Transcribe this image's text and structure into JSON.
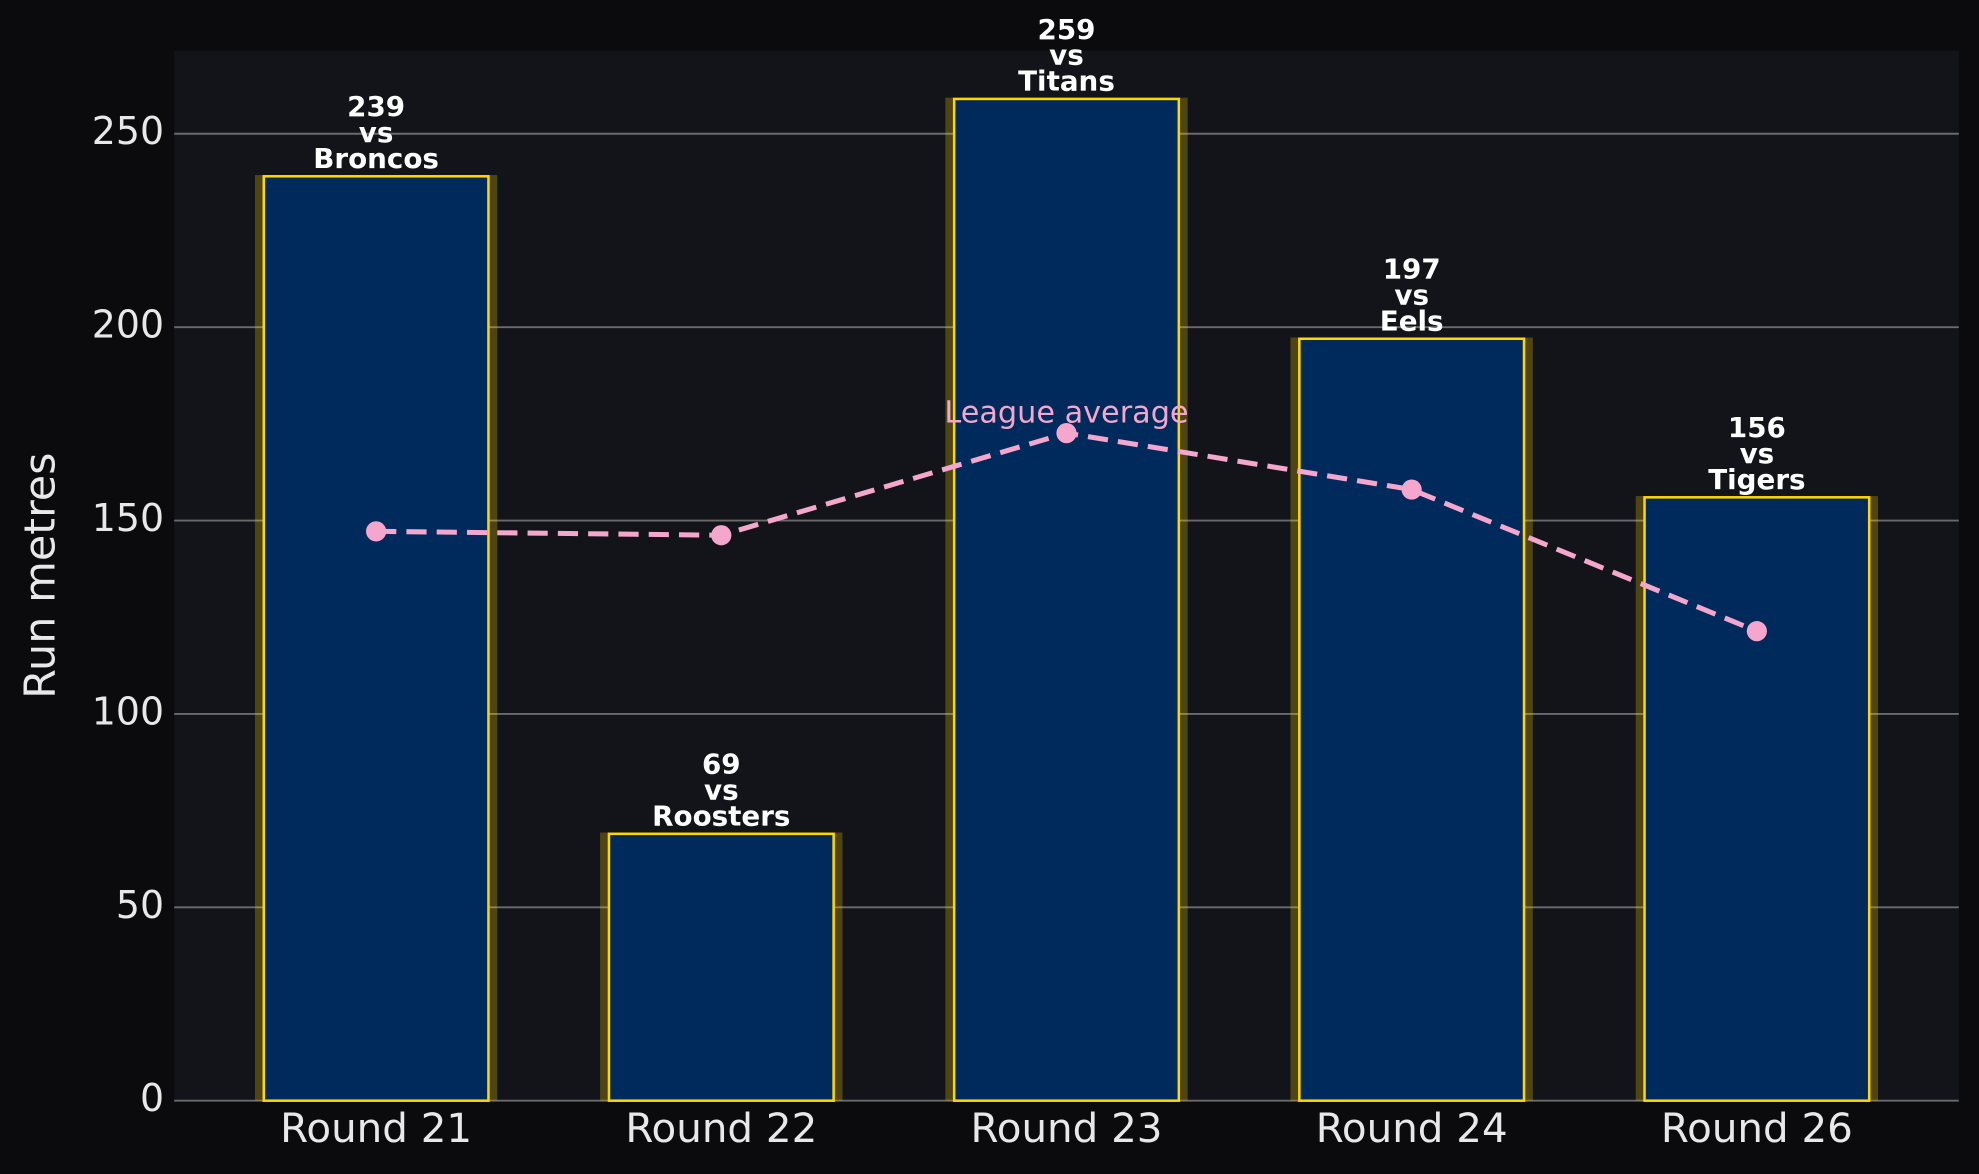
{
  "chart_data": {
    "type": "bar",
    "y_label": "Run metres",
    "categories": [
      "Round 21",
      "Round 22",
      "Round 23",
      "Round 24",
      "Round 26"
    ],
    "values": [
      239,
      69,
      259,
      197,
      156
    ],
    "value_labels": [
      "239\nvs\nBroncos",
      "69\nvs\nRoosters",
      "259\nvs\nTitans",
      "197\nvs\nEels",
      "156\nvs\nTigers"
    ],
    "color": "#002a5c",
    "edge_color": "#ffd700",
    "series": [
      {
        "name": "League average",
        "type": "line",
        "color": "#f4a6cc",
        "values": [
          147.2,
          146.2,
          172.6,
          158.0,
          121.4
        ]
      }
    ],
    "ylim": [
      0,
      271.5
    ],
    "yticks": [
      0,
      50,
      100,
      150,
      200,
      250
    ],
    "grid": true
  }
}
